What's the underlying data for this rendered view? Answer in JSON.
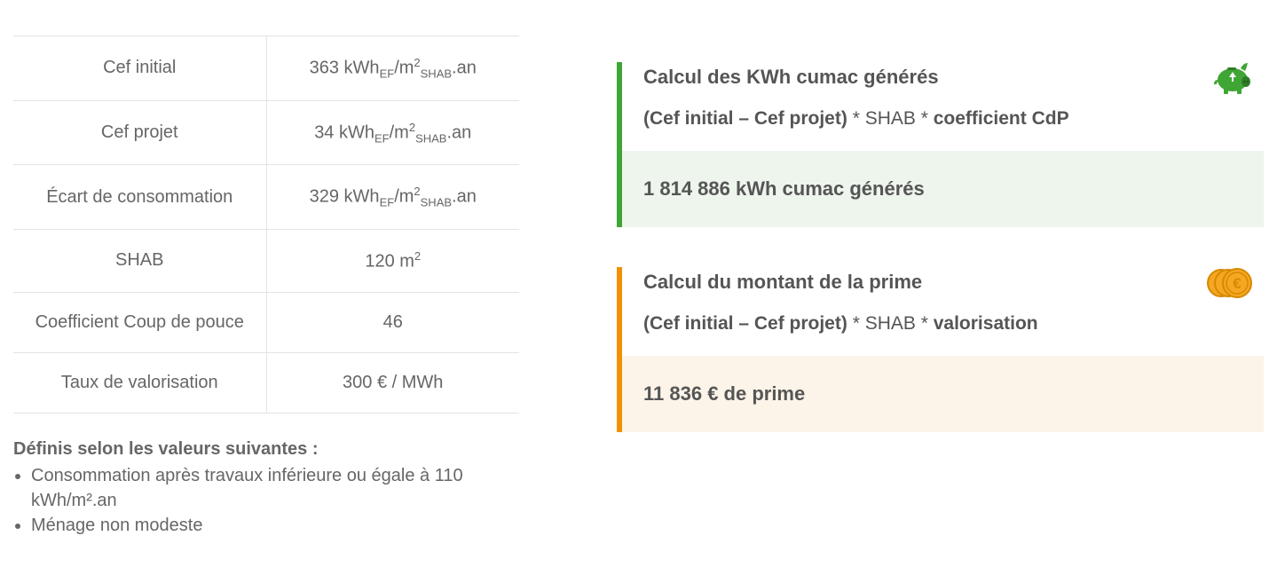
{
  "table": {
    "rows": [
      {
        "label": "Cef initial",
        "value_num": "363",
        "unit_type": "kwh"
      },
      {
        "label": "Cef projet",
        "value_num": "34",
        "unit_type": "kwh"
      },
      {
        "label": "Écart de consommation",
        "value_num": "329",
        "unit_type": "kwh"
      },
      {
        "label": "SHAB",
        "value_num": "120",
        "unit_type": "m2"
      },
      {
        "label": "Coefficient Coup de pouce",
        "value_num": "46",
        "unit_type": "plain"
      },
      {
        "label": "Taux de valorisation",
        "value_num": "300 € / MWh",
        "unit_type": "plain"
      }
    ],
    "units": {
      "kwh_prefix": " kWh",
      "kwh_sub1": "EF",
      "kwh_mid": "/m",
      "kwh_sup": "2",
      "kwh_sub2": "SHAB",
      "kwh_suffix": ".an",
      "m2_prefix": " m",
      "m2_sup": "2"
    }
  },
  "notes": {
    "title": "Définis selon les valeurs suivantes :",
    "items": [
      "Consommation après travaux inférieure ou égale à 110 kWh/m².an",
      "Ménage non modeste"
    ]
  },
  "calc_green": {
    "title": "Calcul des KWh cumac générés",
    "formula_b1": "(Cef initial – Cef projet)",
    "formula_mid1": " * SHAB * ",
    "formula_b2": "coefficient CdP",
    "result": "1 814 886 kWh cumac générés",
    "accent_color": "#3fa535",
    "bg_color": "#edf5ec"
  },
  "calc_orange": {
    "title": "Calcul du montant de la prime",
    "formula_b1": "(Cef initial – Cef projet)",
    "formula_mid1": " * SHAB * ",
    "formula_b2": "valorisation",
    "result": "11 836 € de prime",
    "accent_color": "#f29100",
    "bg_color": "#fdf4e9"
  },
  "colors": {
    "text": "#666666",
    "text_strong": "#555555",
    "border": "#e3e3e3",
    "background": "#ffffff",
    "piggy_body": "#3fa535",
    "piggy_dark": "#2e7d27",
    "coin_fill": "#f5a623",
    "coin_stroke": "#d68a00"
  }
}
